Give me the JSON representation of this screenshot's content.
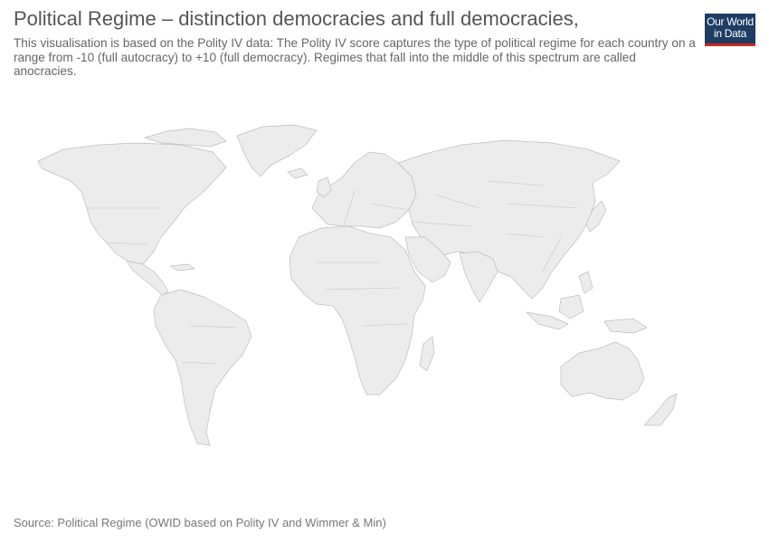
{
  "header": {
    "title": "Political Regime – distinction democracies and full democracies,",
    "subtitle": "This visualisation is based on the Polity IV data: The Polity IV score captures the type of political regime for each country on a range from -10 (full autocracy) to +10 (full democracy). Regimes that fall into the middle of this spectrum are called anocracies."
  },
  "logo": {
    "line1": "Our World",
    "line2": "in Data",
    "background": "#1d3d63",
    "accent": "#ce261e"
  },
  "map": {
    "land_color": "#ececec",
    "border_color": "#bdbdbd",
    "data_shown": "none"
  },
  "footer": {
    "source": "Source: Political Regime (OWID based on Polity IV and Wimmer & Min)"
  }
}
